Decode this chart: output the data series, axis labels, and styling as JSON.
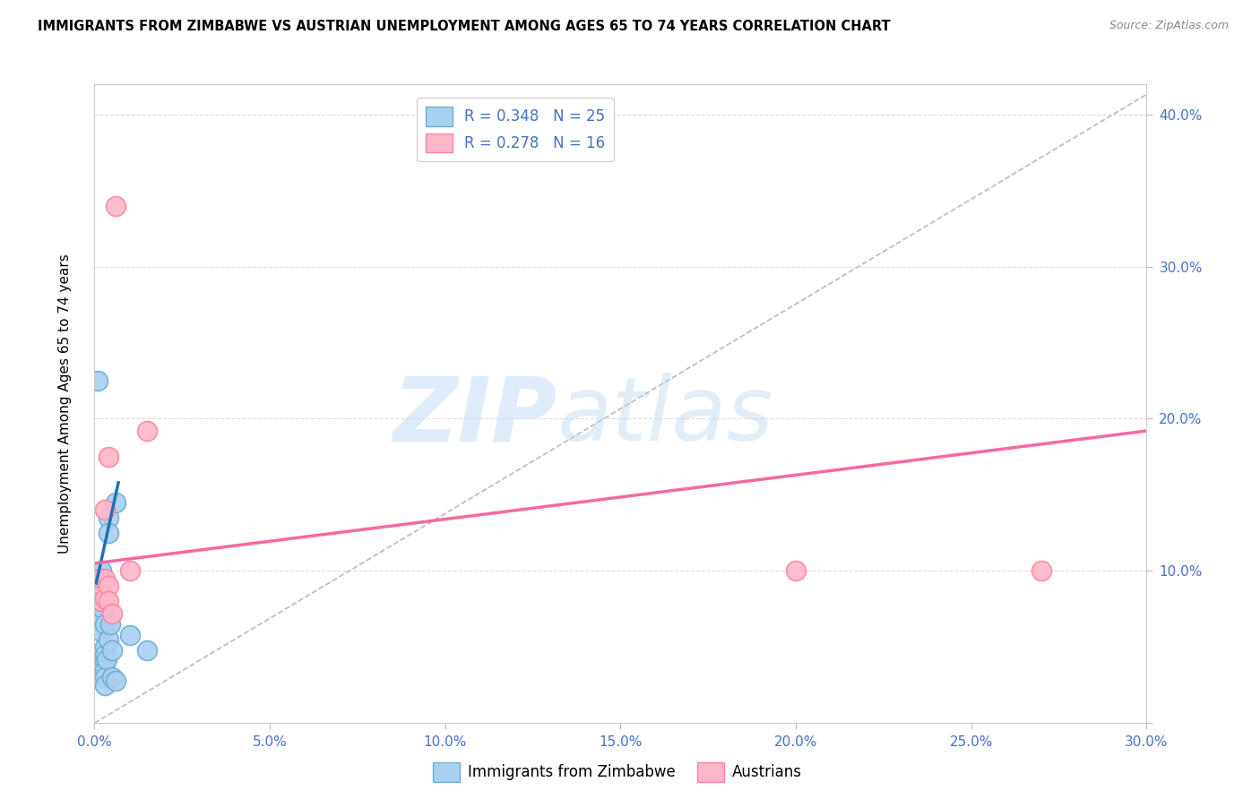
{
  "title": "IMMIGRANTS FROM ZIMBABWE VS AUSTRIAN UNEMPLOYMENT AMONG AGES 65 TO 74 YEARS CORRELATION CHART",
  "source": "Source: ZipAtlas.com",
  "ylabel": "Unemployment Among Ages 65 to 74 years",
  "xlim": [
    0.0,
    0.3
  ],
  "ylim": [
    0.0,
    0.42
  ],
  "xticks": [
    0.0,
    0.05,
    0.1,
    0.15,
    0.2,
    0.25,
    0.3
  ],
  "yticks": [
    0.0,
    0.1,
    0.2,
    0.3,
    0.4
  ],
  "xtick_labels": [
    "0.0%",
    "5.0%",
    "10.0%",
    "15.0%",
    "20.0%",
    "25.0%",
    "30.0%"
  ],
  "ytick_labels": [
    "",
    "10.0%",
    "20.0%",
    "30.0%",
    "40.0%"
  ],
  "legend1_label": "R = 0.348   N = 25",
  "legend2_label": "R = 0.278   N = 16",
  "legend_bottom1": "Immigrants from Zimbabwe",
  "legend_bottom2": "Austrians",
  "blue_scatter_facecolor": "#a8d0f0",
  "blue_scatter_edgecolor": "#6baed6",
  "pink_scatter_facecolor": "#ffb6c8",
  "pink_scatter_edgecolor": "#ff85a0",
  "blue_line_color": "#2171b5",
  "pink_line_color": "#f768a1",
  "diagonal_line_color": "#bbbbbb",
  "grid_color": "#dddddd",
  "blue_scatter_points": [
    [
      0.001,
      0.225
    ],
    [
      0.002,
      0.09
    ],
    [
      0.002,
      0.1
    ],
    [
      0.002,
      0.08
    ],
    [
      0.002,
      0.07
    ],
    [
      0.002,
      0.06
    ],
    [
      0.0025,
      0.075
    ],
    [
      0.003,
      0.065
    ],
    [
      0.003,
      0.05
    ],
    [
      0.003,
      0.045
    ],
    [
      0.003,
      0.04
    ],
    [
      0.003,
      0.035
    ],
    [
      0.003,
      0.03
    ],
    [
      0.003,
      0.025
    ],
    [
      0.0035,
      0.042
    ],
    [
      0.004,
      0.135
    ],
    [
      0.004,
      0.125
    ],
    [
      0.004,
      0.055
    ],
    [
      0.0045,
      0.065
    ],
    [
      0.005,
      0.048
    ],
    [
      0.005,
      0.03
    ],
    [
      0.006,
      0.145
    ],
    [
      0.006,
      0.028
    ],
    [
      0.01,
      0.058
    ],
    [
      0.015,
      0.048
    ]
  ],
  "pink_scatter_points": [
    [
      0.001,
      0.095
    ],
    [
      0.0015,
      0.09
    ],
    [
      0.002,
      0.095
    ],
    [
      0.002,
      0.08
    ],
    [
      0.003,
      0.14
    ],
    [
      0.003,
      0.095
    ],
    [
      0.003,
      0.082
    ],
    [
      0.004,
      0.175
    ],
    [
      0.004,
      0.09
    ],
    [
      0.004,
      0.08
    ],
    [
      0.005,
      0.072
    ],
    [
      0.006,
      0.34
    ],
    [
      0.01,
      0.1
    ],
    [
      0.015,
      0.192
    ],
    [
      0.2,
      0.1
    ],
    [
      0.27,
      0.1
    ]
  ],
  "blue_line_x": [
    0.0005,
    0.0068
  ],
  "blue_line_y": [
    0.092,
    0.158
  ],
  "pink_line_x": [
    0.0,
    0.3
  ],
  "pink_line_y": [
    0.105,
    0.192
  ],
  "diagonal_line_x": [
    0.0,
    0.305
  ],
  "diagonal_line_y": [
    0.0,
    0.42
  ]
}
